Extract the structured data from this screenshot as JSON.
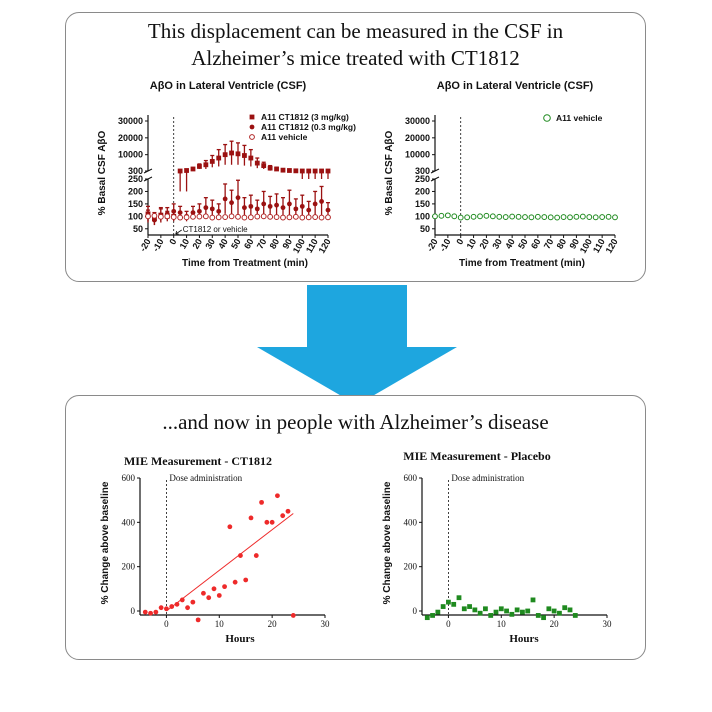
{
  "top_panel": {
    "title_line1": "This displacement can be measured in the CSF in",
    "title_line2": "Alzheimer’s mice treated with CT1812"
  },
  "bottom_panel": {
    "title": "...and now in people with Alzheimer’s disease"
  },
  "colors": {
    "arrow": "#1ea6df",
    "dark_red": "#9b1111",
    "red": "#ee2a2a",
    "green": "#1f8a1f",
    "vehicle_red": "#b02525"
  },
  "icons": {
    "arrow": "down-arrow-icon"
  },
  "chart_data": [
    {
      "type": "scatter",
      "title": "AβO in Lateral Ventricle (CSF)",
      "xlabel": "Time from Treatment (min)",
      "ylabel": "% Basal CSF AβO",
      "xlim": [
        -20,
        120
      ],
      "x_ticks": [
        "-20",
        "-10",
        "0",
        "10",
        "20",
        "30",
        "40",
        "50",
        "60",
        "70",
        "80",
        "90",
        "100",
        "110",
        "120"
      ],
      "y_ticks_upper": [
        "30000",
        "20000",
        "10000",
        "300"
      ],
      "y_ticks_lower": [
        "250",
        "200",
        "150",
        "100",
        "50"
      ],
      "y_break": [
        250,
        300
      ],
      "annotation": "CT1812 or vehicle",
      "series": [
        {
          "name": "A11 CT1812 (3 mg/kg)",
          "marker": "square",
          "x": [
            -20,
            -15,
            -10,
            -5,
            0,
            5,
            10,
            15,
            20,
            25,
            30,
            35,
            40,
            45,
            50,
            55,
            60,
            65,
            70,
            75,
            80,
            85,
            90,
            95,
            100,
            105,
            110,
            115,
            120
          ],
          "values": [
            110,
            90,
            105,
            100,
            100,
            300,
            600,
            1500,
            3000,
            4000,
            6000,
            8000,
            10000,
            11000,
            10500,
            9500,
            8000,
            5000,
            3500,
            2000,
            1500,
            800,
            600,
            400,
            300,
            300,
            300,
            300,
            300
          ],
          "errors": [
            30,
            25,
            25,
            20,
            20,
            100,
            400,
            800,
            1500,
            2500,
            3500,
            5000,
            6000,
            7000,
            6500,
            6000,
            5000,
            3000,
            2000,
            1500,
            1000,
            500,
            300,
            100,
            50,
            50,
            50,
            50,
            50
          ]
        },
        {
          "name": "A11 CT1812 (0.3 mg/kg)",
          "marker": "circle",
          "x": [
            -20,
            -15,
            -10,
            -5,
            0,
            5,
            10,
            15,
            20,
            25,
            30,
            35,
            40,
            45,
            50,
            55,
            60,
            65,
            70,
            75,
            80,
            85,
            90,
            95,
            100,
            105,
            110,
            115,
            120
          ],
          "values": [
            100,
            85,
            105,
            110,
            120,
            115,
            100,
            115,
            120,
            135,
            130,
            120,
            170,
            155,
            175,
            135,
            140,
            130,
            150,
            140,
            145,
            135,
            150,
            130,
            140,
            125,
            150,
            160,
            125
          ],
          "errors": [
            25,
            20,
            30,
            25,
            30,
            25,
            20,
            25,
            30,
            40,
            35,
            30,
            60,
            50,
            70,
            40,
            45,
            35,
            50,
            40,
            45,
            40,
            55,
            40,
            45,
            35,
            50,
            60,
            30
          ]
        },
        {
          "name": "A11 vehicle",
          "marker": "open-circle",
          "x": [
            -20,
            -15,
            -10,
            -5,
            0,
            5,
            10,
            15,
            20,
            25,
            30,
            35,
            40,
            45,
            50,
            55,
            60,
            65,
            70,
            75,
            80,
            85,
            90,
            95,
            100,
            105,
            110,
            115,
            120
          ],
          "values": [
            100,
            102,
            98,
            100,
            97,
            95,
            96,
            98,
            99,
            100,
            95,
            96,
            97,
            100,
            98,
            95,
            96,
            99,
            100,
            98,
            97,
            95,
            96,
            98,
            95,
            96,
            97,
            95,
            96
          ]
        }
      ]
    },
    {
      "type": "scatter",
      "title": "AβO in Lateral Ventricle (CSF)",
      "xlabel": "Time from Treatment (min)",
      "ylabel": "% Basal CSF AβO",
      "xlim": [
        -20,
        120
      ],
      "x_ticks": [
        "-20",
        "-10",
        "0",
        "10",
        "20",
        "30",
        "40",
        "50",
        "60",
        "70",
        "80",
        "90",
        "100",
        "110",
        "120"
      ],
      "y_ticks_upper": [
        "30000",
        "20000",
        "10000",
        "300"
      ],
      "y_ticks_lower": [
        "250",
        "200",
        "150",
        "100",
        "50"
      ],
      "y_break": [
        250,
        300
      ],
      "series": [
        {
          "name": "A11 vehicle",
          "marker": "open-circle",
          "x": [
            -20,
            -15,
            -10,
            -5,
            0,
            5,
            10,
            15,
            20,
            25,
            30,
            35,
            40,
            45,
            50,
            55,
            60,
            65,
            70,
            75,
            80,
            85,
            90,
            95,
            100,
            105,
            110,
            115,
            120
          ],
          "values": [
            100,
            102,
            104,
            100,
            95,
            96,
            98,
            100,
            102,
            100,
            98,
            97,
            99,
            98,
            97,
            96,
            98,
            97,
            96,
            95,
            97,
            96,
            98,
            99,
            97,
            96,
            97,
            98,
            96
          ]
        }
      ]
    },
    {
      "type": "scatter",
      "title": "MIE Measurement - CT1812",
      "xlabel": "Hours",
      "ylabel": "% Change above baseline",
      "xlim": [
        -5,
        30
      ],
      "ylim": [
        0,
        600
      ],
      "x_ticks": [
        "0",
        "10",
        "20",
        "30"
      ],
      "y_ticks": [
        "0",
        "200",
        "400",
        "600"
      ],
      "annotation": "Dose administration",
      "trendline": {
        "x": [
          0,
          24
        ],
        "y": [
          0,
          440
        ]
      },
      "series": [
        {
          "name": "",
          "marker": "circle",
          "x": [
            -4,
            -3,
            -2,
            -1,
            0,
            1,
            2,
            3,
            4,
            5,
            6,
            7,
            8,
            9,
            10,
            11,
            12,
            13,
            14,
            15,
            16,
            17,
            18,
            19,
            20,
            21,
            22,
            23,
            24
          ],
          "values": [
            -5,
            -10,
            -5,
            15,
            10,
            20,
            30,
            50,
            15,
            40,
            -40,
            80,
            60,
            100,
            70,
            110,
            380,
            130,
            250,
            140,
            420,
            250,
            490,
            400,
            400,
            520,
            430,
            450,
            -20
          ]
        }
      ]
    },
    {
      "type": "scatter",
      "title": "MIE Measurement - Placebo",
      "xlabel": "Hours",
      "ylabel": "% Change above baseline",
      "xlim": [
        -5,
        30
      ],
      "ylim": [
        0,
        600
      ],
      "x_ticks": [
        "0",
        "10",
        "20",
        "30"
      ],
      "y_ticks": [
        "0",
        "200",
        "400",
        "600"
      ],
      "annotation": "Dose administration",
      "series": [
        {
          "name": "",
          "marker": "square",
          "x": [
            -4,
            -3,
            -2,
            -1,
            0,
            1,
            2,
            3,
            4,
            5,
            6,
            7,
            8,
            9,
            10,
            11,
            12,
            13,
            14,
            15,
            16,
            17,
            18,
            19,
            20,
            21,
            22,
            23,
            24
          ],
          "values": [
            -30,
            -20,
            -5,
            20,
            40,
            30,
            60,
            10,
            20,
            5,
            -10,
            10,
            -20,
            -5,
            10,
            0,
            -15,
            5,
            -5,
            0,
            50,
            -20,
            -30,
            10,
            0,
            -10,
            15,
            5,
            -20
          ]
        }
      ]
    }
  ]
}
